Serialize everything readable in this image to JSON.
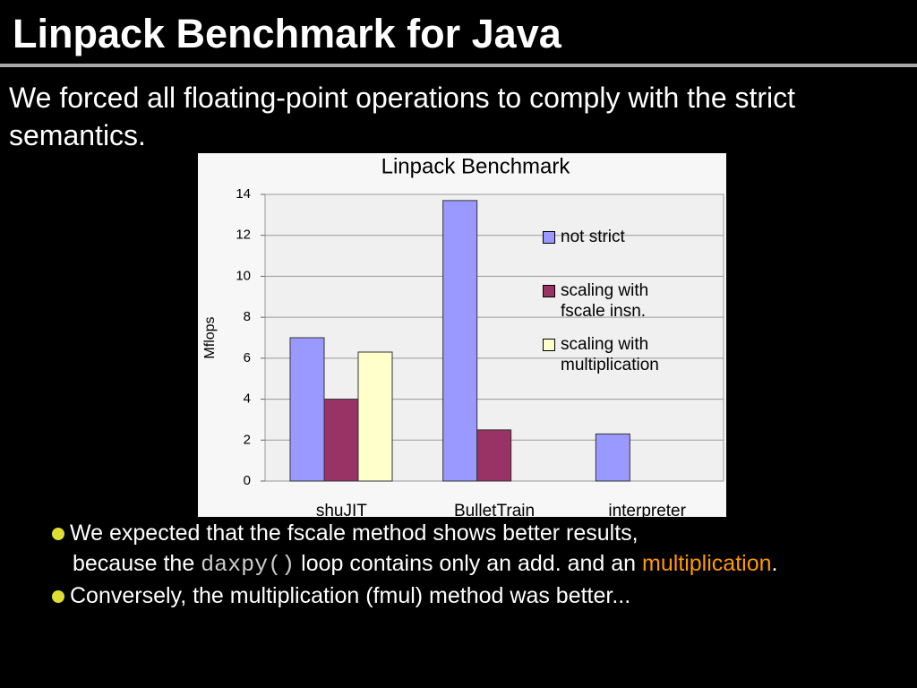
{
  "header": {
    "title": "Linpack Benchmark for Java"
  },
  "intro": "We forced all floating-point operations to comply with the strict semantics.",
  "chart_data": {
    "type": "bar",
    "title": "Linpack Benchmark",
    "y_label": "Mflops",
    "categories": [
      "shuJIT",
      "BulletTrain",
      "interpreter"
    ],
    "series": [
      {
        "name": "not strict",
        "color": "#9999ff",
        "values": [
          7.0,
          13.7,
          2.3
        ]
      },
      {
        "name": "scaling with fscale insn.",
        "color": "#993366",
        "values": [
          4.0,
          2.5,
          null
        ]
      },
      {
        "name": "scaling with multiplication",
        "color": "#ffffcc",
        "values": [
          6.3,
          null,
          null
        ]
      }
    ],
    "ylim": [
      0,
      14
    ],
    "yticks": [
      0,
      2,
      4,
      6,
      8,
      10,
      12,
      14
    ],
    "grid": true
  },
  "bullets": [
    {
      "lines": [
        [
          "We expected that the fscale method shows better results,"
        ],
        [
          "because the ",
          "daxpy()",
          " loop contains only an add. and an ",
          "multiplication",
          "."
        ]
      ]
    },
    {
      "lines": [
        [
          "Conversely, the multiplication (fmul) method was better..."
        ]
      ]
    }
  ]
}
